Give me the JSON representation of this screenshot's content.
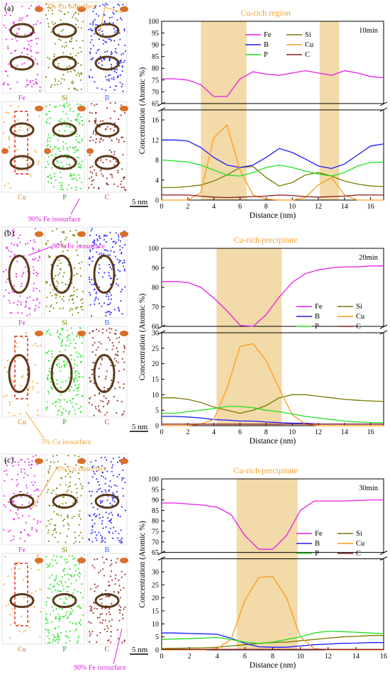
{
  "chart_data": [
    {
      "panel": "(a)",
      "type": "line",
      "duration": "10min",
      "region_label": "Cu-rich region",
      "xlabel": "Distance (nm)",
      "ylabel": "Concentration (Atomic %)",
      "xlim": [
        0,
        17
      ],
      "xticks": [
        0,
        2,
        4,
        6,
        8,
        10,
        12,
        14,
        16
      ],
      "top_ylim": [
        65,
        100
      ],
      "top_yticks": [
        65,
        70,
        75,
        80,
        85,
        90,
        95,
        100
      ],
      "bottom_ylim": [
        0,
        18
      ],
      "bottom_yticks": [
        0,
        4,
        8,
        12,
        16
      ],
      "shaded_ranges": [
        [
          3.0,
          6.5
        ],
        [
          12.1,
          13.6
        ]
      ],
      "series": [
        {
          "name": "Fe",
          "color": "#e61ee6",
          "axis": "top",
          "x": [
            0,
            1,
            2,
            3,
            4,
            5,
            6,
            7,
            8,
            9,
            10,
            11,
            12,
            13,
            14,
            15,
            16,
            17
          ],
          "y": [
            75.5,
            75.5,
            75,
            73,
            68,
            68,
            75.5,
            78.5,
            77.5,
            77,
            78,
            79,
            78,
            77,
            79,
            78,
            76.5,
            76
          ]
        },
        {
          "name": "Si",
          "color": "#7a7a00",
          "axis": "bottom",
          "x": [
            0,
            1,
            2,
            3,
            4,
            5,
            6,
            7,
            8,
            9,
            10,
            11,
            12,
            13,
            14,
            15,
            16,
            17
          ],
          "y": [
            2.5,
            2.5,
            2.7,
            3,
            3.8,
            5,
            6.5,
            6.7,
            4.5,
            2.8,
            3.5,
            5,
            5.5,
            4.8,
            3.8,
            3.2,
            2.8,
            2.7
          ]
        },
        {
          "name": "B",
          "color": "#1a1aff",
          "axis": "bottom",
          "x": [
            0,
            1,
            2,
            3,
            4,
            5,
            6,
            7,
            8,
            9,
            10,
            11,
            12,
            13,
            14,
            15,
            16,
            17
          ],
          "y": [
            12,
            12,
            11.8,
            10.5,
            8.5,
            7,
            6.5,
            7,
            8.5,
            10.3,
            9.5,
            8.2,
            6.8,
            6.3,
            7.2,
            9,
            10.8,
            11.2
          ]
        },
        {
          "name": "Cu",
          "color": "#ff9a1a",
          "axis": "bottom",
          "x": [
            0,
            1,
            2,
            3,
            4,
            5,
            6,
            7,
            8,
            9,
            10,
            11,
            12,
            13,
            14,
            15,
            16,
            17
          ],
          "y": [
            0,
            0,
            0,
            1.5,
            12.5,
            15,
            6,
            1,
            0.2,
            0,
            0,
            0.5,
            3,
            4.5,
            1,
            0,
            0,
            0
          ]
        },
        {
          "name": "P",
          "color": "#22e022",
          "axis": "bottom",
          "x": [
            0,
            1,
            2,
            3,
            4,
            5,
            6,
            7,
            8,
            9,
            10,
            11,
            12,
            13,
            14,
            15,
            16,
            17
          ],
          "y": [
            8,
            7.8,
            7.6,
            7,
            6,
            5,
            4.8,
            5.5,
            6.5,
            7,
            6.5,
            5.8,
            5.2,
            4.8,
            5.5,
            6.8,
            7.5,
            7.6
          ]
        },
        {
          "name": "C",
          "color": "#8b1a1a",
          "axis": "bottom",
          "x": [
            0,
            1,
            2,
            3,
            4,
            5,
            6,
            7,
            8,
            9,
            10,
            11,
            12,
            13,
            14,
            15,
            16,
            17
          ],
          "y": [
            1,
            1,
            1,
            0.8,
            0.6,
            0.5,
            0.6,
            0.7,
            0.8,
            1,
            0.9,
            0.7,
            0.6,
            0.7,
            0.8,
            1,
            1,
            1
          ]
        }
      ],
      "atom_map": {
        "label": "(a)",
        "scale_label": "5 nm",
        "annotations": [
          "3% Cu isosurface",
          "90% Fe isosurface"
        ],
        "element_labels": [
          {
            "text": "Fe",
            "color": "#c040c0"
          },
          {
            "text": "Si",
            "color": "#808000"
          },
          {
            "text": "B",
            "color": "#4060ff"
          },
          {
            "text": "Cu",
            "color": "#d08020"
          },
          {
            "text": "P",
            "color": "#20a020"
          },
          {
            "text": "C",
            "color": "#a04040"
          }
        ]
      }
    },
    {
      "panel": "(b)",
      "type": "line",
      "duration": "20min",
      "region_label": "Cu-rich precipitate",
      "xlabel": "Distance (nm)",
      "ylabel": "Concentration (Atomic %)",
      "xlim": [
        0,
        17
      ],
      "xticks": [
        0,
        2,
        4,
        6,
        8,
        10,
        12,
        14,
        16
      ],
      "top_ylim": [
        60,
        100
      ],
      "top_yticks": [
        60,
        70,
        80,
        90,
        100
      ],
      "bottom_ylim": [
        0,
        30
      ],
      "bottom_yticks": [
        0,
        5,
        10,
        15,
        20,
        25,
        30
      ],
      "shaded_ranges": [
        [
          4.2,
          9.2
        ]
      ],
      "series": [
        {
          "name": "Fe",
          "color": "#e61ee6",
          "axis": "top",
          "x": [
            0,
            1,
            2,
            3,
            4,
            5,
            6,
            7,
            8,
            9,
            10,
            11,
            12,
            13,
            14,
            15,
            16,
            17
          ],
          "y": [
            83,
            83,
            82.5,
            80,
            74.5,
            68,
            60.5,
            60,
            66,
            75,
            82.5,
            87,
            89,
            90,
            90.5,
            90.5,
            91,
            91
          ]
        },
        {
          "name": "Si",
          "color": "#7a7a00",
          "axis": "bottom",
          "x": [
            0,
            1,
            2,
            3,
            4,
            5,
            6,
            7,
            8,
            9,
            10,
            11,
            12,
            13,
            14,
            15,
            16,
            17
          ],
          "y": [
            9,
            9,
            8.5,
            7.5,
            6,
            5,
            4,
            5,
            6.5,
            9,
            10,
            10,
            9.5,
            9,
            8.5,
            8.2,
            8,
            7.8
          ]
        },
        {
          "name": "B",
          "color": "#1a1aff",
          "axis": "bottom",
          "x": [
            0,
            1,
            2,
            3,
            4,
            5,
            6,
            7,
            8,
            9,
            10,
            11,
            12,
            13,
            14,
            15,
            16,
            17
          ],
          "y": [
            3,
            3,
            2.8,
            2.5,
            2,
            1.8,
            1.5,
            1.5,
            1.2,
            1,
            0.8,
            0.8,
            0.5,
            0.5,
            0.5,
            0.5,
            0.5,
            0.5
          ]
        },
        {
          "name": "Cu",
          "color": "#ff9a1a",
          "axis": "bottom",
          "x": [
            0,
            1,
            2,
            3,
            4,
            5,
            6,
            7,
            8,
            9,
            10,
            11,
            12,
            13,
            14,
            15,
            16,
            17
          ],
          "y": [
            0,
            0,
            0,
            0.5,
            2,
            12,
            25.5,
            26.5,
            21,
            12,
            3.5,
            0.5,
            0,
            0,
            0,
            0,
            0,
            0
          ]
        },
        {
          "name": "P",
          "color": "#22e022",
          "axis": "bottom",
          "x": [
            0,
            1,
            2,
            3,
            4,
            5,
            6,
            7,
            8,
            9,
            10,
            11,
            12,
            13,
            14,
            15,
            16,
            17
          ],
          "y": [
            4,
            4,
            4.5,
            5,
            5.5,
            6.2,
            6.2,
            5.8,
            5,
            4.5,
            3.8,
            3,
            2.5,
            2,
            1.5,
            1.2,
            1,
            1
          ]
        },
        {
          "name": "C",
          "color": "#8b1a1a",
          "axis": "bottom",
          "x": [
            0,
            1,
            2,
            3,
            4,
            5,
            6,
            7,
            8,
            9,
            10,
            11,
            12,
            13,
            14,
            15,
            16,
            17
          ],
          "y": [
            0.5,
            0.5,
            0.5,
            0.5,
            0.5,
            0.5,
            0.5,
            0.5,
            0.5,
            0.5,
            0.5,
            0.5,
            0.5,
            0.5,
            0.5,
            0.5,
            0.5,
            0.5
          ]
        }
      ],
      "atom_map": {
        "label": "(b)",
        "scale_label": "5 nm",
        "annotations": [
          "90% Fe isosurface",
          "3% Cu isosurface"
        ],
        "element_labels": [
          {
            "text": "Fe",
            "color": "#c040c0"
          },
          {
            "text": "Si",
            "color": "#808000"
          },
          {
            "text": "B",
            "color": "#4060ff"
          },
          {
            "text": "Cu",
            "color": "#d08020"
          },
          {
            "text": "P",
            "color": "#20a020"
          },
          {
            "text": "C",
            "color": "#a04040"
          }
        ]
      }
    },
    {
      "panel": "(c)",
      "type": "line",
      "duration": "30min",
      "region_label": "Cu-rich precipitate",
      "xlabel": "Distance (nm)",
      "ylabel": "Concentration (Atomic %)",
      "xlim": [
        0,
        16
      ],
      "xticks": [
        0,
        2,
        4,
        6,
        8,
        10,
        12,
        14,
        16
      ],
      "top_ylim": [
        65,
        100
      ],
      "top_yticks": [
        65,
        70,
        75,
        80,
        85,
        90,
        95,
        100
      ],
      "bottom_ylim": [
        0,
        35
      ],
      "bottom_yticks": [
        0,
        5,
        10,
        15,
        20,
        25,
        30
      ],
      "shaded_ranges": [
        [
          5.4,
          9.8
        ]
      ],
      "series": [
        {
          "name": "Fe",
          "color": "#e61ee6",
          "axis": "top",
          "x": [
            0,
            1,
            2,
            3,
            4,
            5,
            6,
            7,
            8,
            9,
            10,
            11,
            12,
            13,
            14,
            15,
            16
          ],
          "y": [
            88.5,
            88.5,
            88,
            87.5,
            86.5,
            83,
            73,
            66.5,
            66.5,
            73,
            85,
            89.5,
            89.5,
            89.5,
            89.7,
            90,
            90
          ]
        },
        {
          "name": "Si",
          "color": "#7a7a00",
          "axis": "bottom",
          "x": [
            0,
            1,
            2,
            3,
            4,
            5,
            6,
            7,
            8,
            9,
            10,
            11,
            12,
            13,
            14,
            15,
            16
          ],
          "y": [
            0.5,
            0.6,
            0.7,
            0.8,
            1,
            1.5,
            2,
            2.5,
            2.8,
            3,
            3.5,
            4,
            4.5,
            5,
            5.2,
            5.5,
            5.5
          ]
        },
        {
          "name": "B",
          "color": "#1a1aff",
          "axis": "bottom",
          "x": [
            0,
            1,
            2,
            3,
            4,
            5,
            6,
            7,
            8,
            9,
            10,
            11,
            12,
            13,
            14,
            15,
            16
          ],
          "y": [
            6.5,
            6.5,
            6.3,
            6.2,
            6,
            4.5,
            2.5,
            1.2,
            1,
            1,
            1.5,
            2,
            2.2,
            2.5,
            2.6,
            2.8,
            2.8
          ]
        },
        {
          "name": "Cu",
          "color": "#ff9a1a",
          "axis": "bottom",
          "x": [
            0,
            1,
            2,
            3,
            4,
            5,
            6,
            7,
            8,
            9,
            10,
            11,
            12,
            13,
            14,
            15,
            16
          ],
          "y": [
            0,
            0,
            0,
            0,
            0.5,
            4,
            19,
            27.8,
            28.2,
            20,
            5,
            0.5,
            0,
            0,
            0,
            0,
            0
          ]
        },
        {
          "name": "P",
          "color": "#22e022",
          "axis": "bottom",
          "x": [
            0,
            1,
            2,
            3,
            4,
            5,
            6,
            7,
            8,
            9,
            10,
            11,
            12,
            13,
            14,
            15,
            16
          ],
          "y": [
            4,
            4.2,
            4.3,
            4.5,
            4.8,
            4,
            3,
            2.5,
            3,
            4,
            5,
            6.5,
            7.2,
            7,
            6.8,
            6.5,
            6.2
          ]
        },
        {
          "name": "C",
          "color": "#8b1a1a",
          "axis": "bottom",
          "x": [
            0,
            1,
            2,
            3,
            4,
            5,
            6,
            7,
            8,
            9,
            10,
            11,
            12,
            13,
            14,
            15,
            16
          ],
          "y": [
            0.2,
            0.2,
            0.2,
            0.2,
            0.2,
            0.2,
            0.2,
            0.2,
            0.2,
            0.2,
            0.2,
            0.2,
            0.2,
            0.2,
            0.2,
            0.2,
            0.2
          ]
        }
      ],
      "atom_map": {
        "label": "(c)",
        "scale_label": "5 nm",
        "annotations": [
          "3% Cu isosurface",
          "90% Fe isosurface"
        ],
        "element_labels": [
          {
            "text": "Fe",
            "color": "#c040c0"
          },
          {
            "text": "Si",
            "color": "#808000"
          },
          {
            "text": "B",
            "color": "#4060ff"
          },
          {
            "text": "Cu",
            "color": "#d08020"
          },
          {
            "text": "P",
            "color": "#20a020"
          },
          {
            "text": "C",
            "color": "#a04040"
          }
        ]
      }
    }
  ],
  "colors": {
    "shade": "#f0d49a",
    "Fe": "#e61ee6",
    "Si": "#7a7a00",
    "B": "#1a1aff",
    "Cu": "#ff9a1a",
    "P": "#22e022",
    "C": "#8b1a1a",
    "annotation_cu": "#f5a030",
    "annotation_fe": "#e020e0"
  }
}
